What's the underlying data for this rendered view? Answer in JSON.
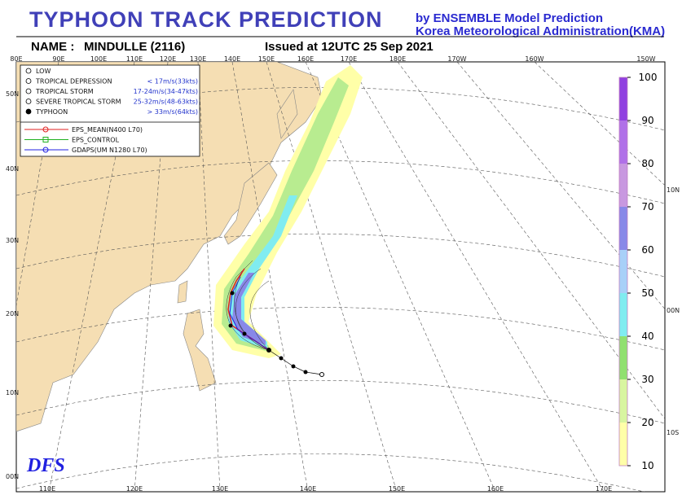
{
  "header": {
    "title": "TYPHOON TRACK PREDICTION",
    "subtitle_1": "by ENSEMBLE Model Prediction",
    "subtitle_2": "Korea Meteorological Administration(KMA)",
    "name_label": "NAME :",
    "storm_name": "MINDULLE (2116)",
    "issued": "Issued at 12UTC 25 Sep 2021"
  },
  "legend": {
    "intensity": [
      {
        "label": "LOW"
      },
      {
        "label": "TROPICAL DEPRESSION",
        "range": "< 17m/s(33kts)"
      },
      {
        "label": "TROPICAL STORM",
        "range": "17-24m/s(34-47kts)"
      },
      {
        "label": "SEVERE TROPICAL STORM",
        "range": "25-32m/s(48-63kts)"
      },
      {
        "label": "TYPHOON",
        "range": "> 33m/s(64kts)"
      }
    ],
    "tracks": [
      {
        "label": "EPS_MEAN(N400 L70)",
        "color": "#e02020"
      },
      {
        "label": "EPS_CONTROL",
        "color": "#20b020"
      },
      {
        "label": "GDAPS(UM N1280 L70)",
        "color": "#2020e0"
      }
    ]
  },
  "map": {
    "top_labels": [
      "80E",
      "90E",
      "100E",
      "110E",
      "120E",
      "130E",
      "140E",
      "150E",
      "160E",
      "170E",
      "180E",
      "170W",
      "160W",
      "150W"
    ],
    "left_labels": [
      "50N",
      "40N",
      "30N",
      "20N",
      "10N",
      "00N"
    ],
    "bottom_labels": [
      "110E",
      "120E",
      "130E",
      "140E",
      "150E",
      "160E",
      "170E"
    ],
    "right_labels": [
      "10N",
      "00N",
      "10S"
    ],
    "logo": "DFS"
  },
  "colorbar": {
    "ticks": [
      10,
      20,
      30,
      40,
      50,
      60,
      70,
      80,
      90,
      100
    ],
    "colors": [
      "#ffffa8",
      "#d8f5a0",
      "#90e070",
      "#80ecf0",
      "#a8d0f8",
      "#8888e8",
      "#c898e0",
      "#b070e8",
      "#9040e0"
    ]
  }
}
